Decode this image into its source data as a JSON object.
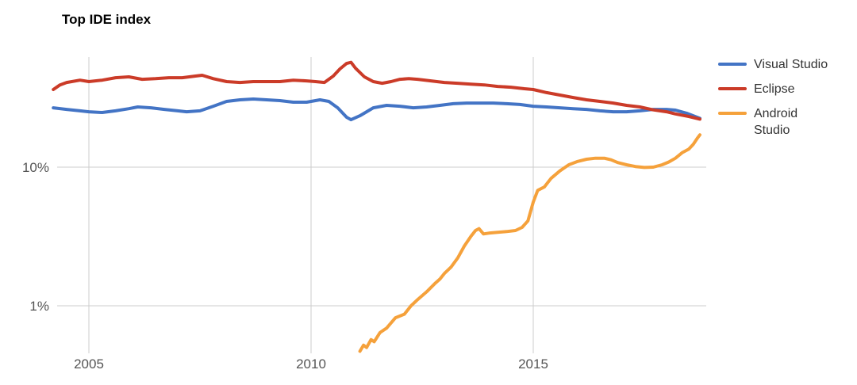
{
  "chart_data": {
    "type": "line",
    "title": "Top IDE index",
    "legend_position": "right",
    "grid": true,
    "colors": {
      "background": "#ffffff",
      "grid": "#cccccc",
      "axis_label": "#555555",
      "legend_text": "#333333",
      "title": "#000000"
    },
    "x_axis": {
      "range": [
        2004.2,
        2018.78
      ],
      "ticks": [
        {
          "label": "2005",
          "value": 2005
        },
        {
          "label": "2010",
          "value": 2010
        },
        {
          "label": "2015",
          "value": 2015
        }
      ]
    },
    "y_axis": {
      "scale": "log",
      "unit": "%",
      "ticks": [
        {
          "label": "10%",
          "value": 10
        },
        {
          "label": "1%",
          "value": 1
        }
      ]
    },
    "series": [
      {
        "name": "Visual Studio",
        "color": "#4374C5",
        "points": [
          [
            2004.2,
            26.8
          ],
          [
            2004.5,
            26.1
          ],
          [
            2004.8,
            25.5
          ],
          [
            2005.0,
            25.1
          ],
          [
            2005.3,
            24.8
          ],
          [
            2005.6,
            25.5
          ],
          [
            2005.9,
            26.4
          ],
          [
            2006.1,
            27.2
          ],
          [
            2006.4,
            26.8
          ],
          [
            2006.7,
            26.1
          ],
          [
            2007.0,
            25.5
          ],
          [
            2007.2,
            25.1
          ],
          [
            2007.5,
            25.5
          ],
          [
            2007.8,
            27.5
          ],
          [
            2008.1,
            29.8
          ],
          [
            2008.4,
            30.6
          ],
          [
            2008.7,
            31.0
          ],
          [
            2009.0,
            30.6
          ],
          [
            2009.3,
            30.2
          ],
          [
            2009.6,
            29.4
          ],
          [
            2009.9,
            29.4
          ],
          [
            2010.2,
            30.6
          ],
          [
            2010.4,
            29.8
          ],
          [
            2010.6,
            26.8
          ],
          [
            2010.8,
            22.9
          ],
          [
            2010.9,
            22.0
          ],
          [
            2011.1,
            23.5
          ],
          [
            2011.4,
            26.8
          ],
          [
            2011.7,
            27.9
          ],
          [
            2012.0,
            27.5
          ],
          [
            2012.3,
            26.8
          ],
          [
            2012.6,
            27.2
          ],
          [
            2012.9,
            27.9
          ],
          [
            2013.2,
            28.7
          ],
          [
            2013.5,
            29.0
          ],
          [
            2013.8,
            29.0
          ],
          [
            2014.1,
            29.0
          ],
          [
            2014.4,
            28.7
          ],
          [
            2014.7,
            28.3
          ],
          [
            2015.0,
            27.5
          ],
          [
            2015.3,
            27.2
          ],
          [
            2015.6,
            26.8
          ],
          [
            2015.9,
            26.4
          ],
          [
            2016.2,
            26.1
          ],
          [
            2016.5,
            25.5
          ],
          [
            2016.8,
            25.1
          ],
          [
            2017.1,
            25.1
          ],
          [
            2017.4,
            25.5
          ],
          [
            2017.7,
            26.1
          ],
          [
            2018.0,
            26.1
          ],
          [
            2018.2,
            25.8
          ],
          [
            2018.45,
            24.5
          ],
          [
            2018.75,
            22.5
          ]
        ]
      },
      {
        "name": "Eclipse",
        "color": "#CB3B28",
        "points": [
          [
            2004.2,
            36.3
          ],
          [
            2004.35,
            39.2
          ],
          [
            2004.5,
            40.8
          ],
          [
            2004.8,
            42.4
          ],
          [
            2005.0,
            41.4
          ],
          [
            2005.3,
            42.4
          ],
          [
            2005.6,
            44.2
          ],
          [
            2005.9,
            44.8
          ],
          [
            2006.2,
            43.0
          ],
          [
            2006.5,
            43.5
          ],
          [
            2006.8,
            44.2
          ],
          [
            2007.1,
            44.2
          ],
          [
            2007.4,
            45.4
          ],
          [
            2007.55,
            46.0
          ],
          [
            2007.8,
            43.5
          ],
          [
            2008.1,
            41.4
          ],
          [
            2008.4,
            40.8
          ],
          [
            2008.7,
            41.4
          ],
          [
            2009.0,
            41.4
          ],
          [
            2009.3,
            41.4
          ],
          [
            2009.6,
            42.4
          ],
          [
            2009.9,
            41.9
          ],
          [
            2010.1,
            41.4
          ],
          [
            2010.3,
            40.8
          ],
          [
            2010.5,
            45.4
          ],
          [
            2010.65,
            51.1
          ],
          [
            2010.8,
            56.0
          ],
          [
            2010.9,
            57.0
          ],
          [
            2011.0,
            51.7
          ],
          [
            2011.2,
            44.8
          ],
          [
            2011.4,
            41.4
          ],
          [
            2011.6,
            40.3
          ],
          [
            2011.8,
            41.4
          ],
          [
            2012.0,
            43.0
          ],
          [
            2012.2,
            43.5
          ],
          [
            2012.4,
            43.0
          ],
          [
            2012.7,
            41.9
          ],
          [
            2013.0,
            40.8
          ],
          [
            2013.3,
            40.3
          ],
          [
            2013.6,
            39.7
          ],
          [
            2013.9,
            39.2
          ],
          [
            2014.2,
            38.2
          ],
          [
            2014.5,
            37.7
          ],
          [
            2014.8,
            36.8
          ],
          [
            2015.0,
            36.3
          ],
          [
            2015.3,
            34.5
          ],
          [
            2015.6,
            33.1
          ],
          [
            2015.9,
            31.8
          ],
          [
            2016.2,
            30.6
          ],
          [
            2016.5,
            29.8
          ],
          [
            2016.8,
            29.0
          ],
          [
            2017.1,
            27.9
          ],
          [
            2017.4,
            27.2
          ],
          [
            2017.7,
            25.9
          ],
          [
            2018.0,
            25.1
          ],
          [
            2018.2,
            24.2
          ],
          [
            2018.5,
            23.2
          ],
          [
            2018.75,
            22.2
          ]
        ]
      },
      {
        "name": "Android Studio",
        "color": "#F5A13B",
        "points": [
          [
            2011.1,
            0.47
          ],
          [
            2011.18,
            0.52
          ],
          [
            2011.25,
            0.5
          ],
          [
            2011.35,
            0.57
          ],
          [
            2011.42,
            0.55
          ],
          [
            2011.55,
            0.64
          ],
          [
            2011.7,
            0.69
          ],
          [
            2011.9,
            0.82
          ],
          [
            2012.1,
            0.87
          ],
          [
            2012.25,
            1.0
          ],
          [
            2012.4,
            1.11
          ],
          [
            2012.6,
            1.26
          ],
          [
            2012.8,
            1.46
          ],
          [
            2012.9,
            1.56
          ],
          [
            2013.0,
            1.71
          ],
          [
            2013.15,
            1.9
          ],
          [
            2013.3,
            2.21
          ],
          [
            2013.45,
            2.7
          ],
          [
            2013.6,
            3.18
          ],
          [
            2013.7,
            3.49
          ],
          [
            2013.78,
            3.6
          ],
          [
            2013.88,
            3.3
          ],
          [
            2014.0,
            3.34
          ],
          [
            2014.2,
            3.39
          ],
          [
            2014.4,
            3.43
          ],
          [
            2014.6,
            3.49
          ],
          [
            2014.75,
            3.68
          ],
          [
            2014.88,
            4.1
          ],
          [
            2015.0,
            5.6
          ],
          [
            2015.1,
            6.8
          ],
          [
            2015.25,
            7.2
          ],
          [
            2015.4,
            8.3
          ],
          [
            2015.6,
            9.4
          ],
          [
            2015.8,
            10.4
          ],
          [
            2016.0,
            11.0
          ],
          [
            2016.2,
            11.4
          ],
          [
            2016.4,
            11.6
          ],
          [
            2016.6,
            11.6
          ],
          [
            2016.75,
            11.3
          ],
          [
            2016.9,
            10.8
          ],
          [
            2017.1,
            10.4
          ],
          [
            2017.3,
            10.1
          ],
          [
            2017.5,
            9.95
          ],
          [
            2017.7,
            10.0
          ],
          [
            2017.9,
            10.4
          ],
          [
            2018.05,
            10.9
          ],
          [
            2018.2,
            11.6
          ],
          [
            2018.35,
            12.7
          ],
          [
            2018.5,
            13.5
          ],
          [
            2018.6,
            14.6
          ],
          [
            2018.7,
            16.3
          ],
          [
            2018.75,
            17.1
          ]
        ]
      }
    ]
  }
}
